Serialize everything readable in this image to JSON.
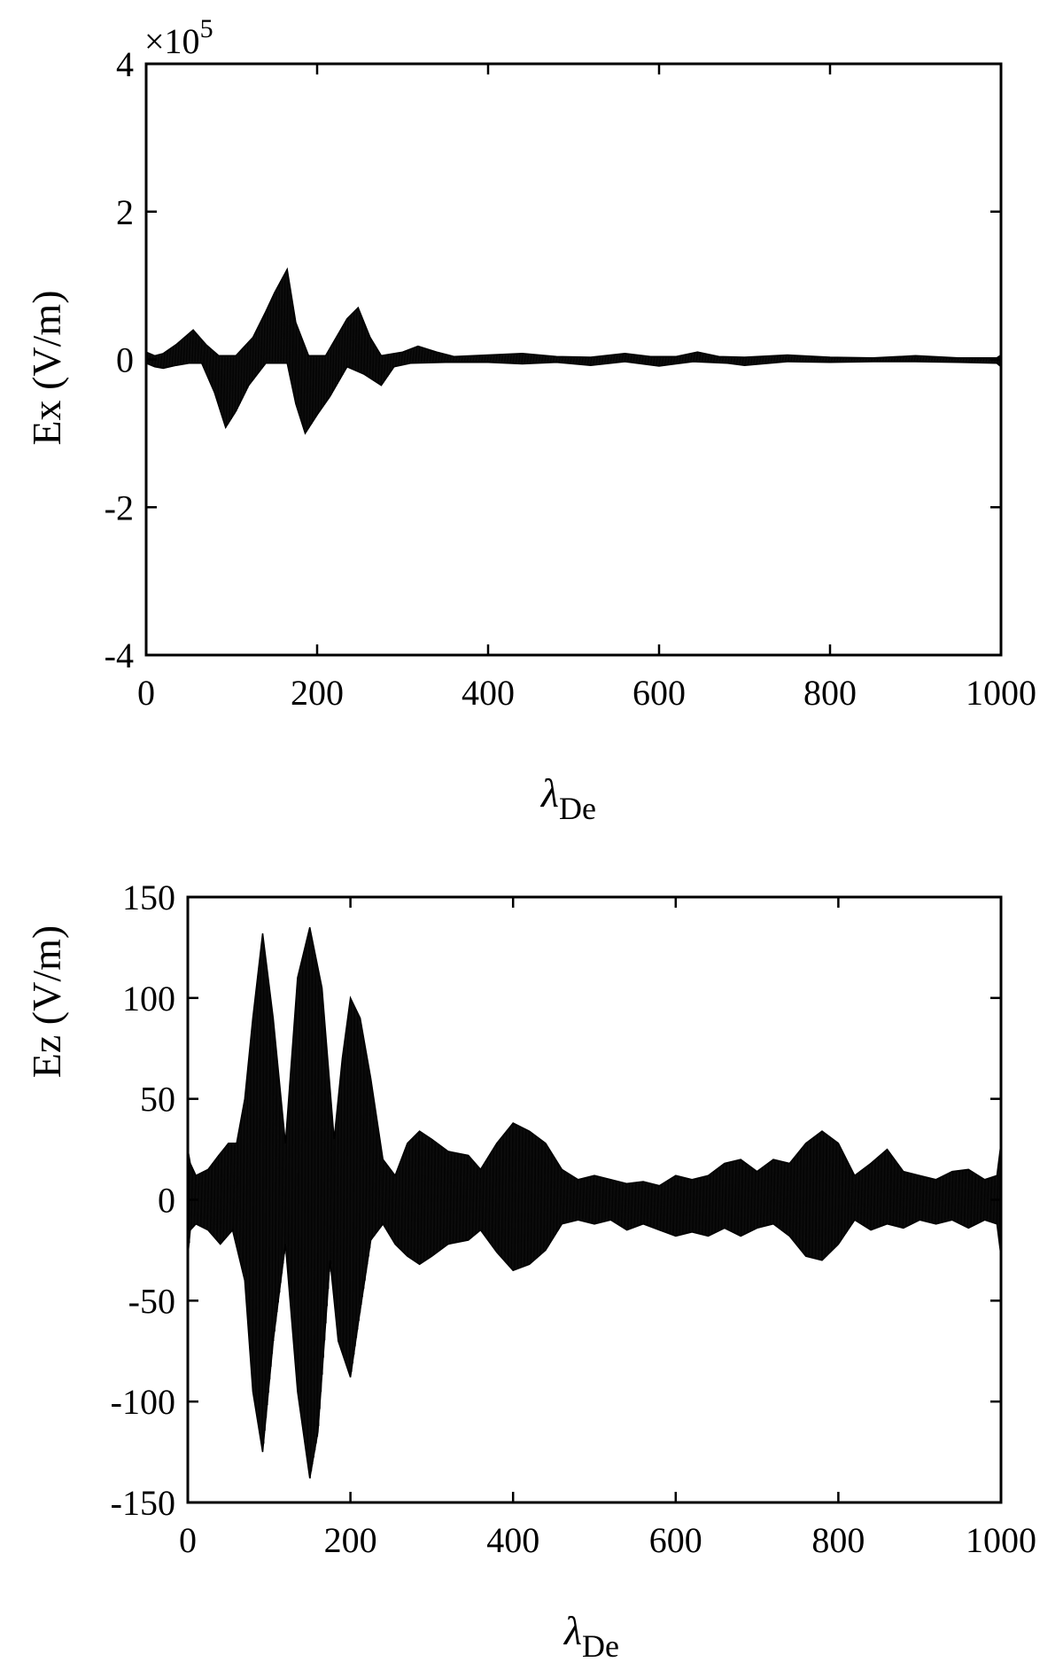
{
  "chart_data": [
    {
      "type": "area",
      "xlabel": "λ",
      "xlabel_sub": "De",
      "ylabel": "Ex (V/m)",
      "y_exponent_label": "×10",
      "y_exponent_power": "5",
      "xlim": [
        0,
        1000
      ],
      "ylim": [
        -4,
        4
      ],
      "xticks": [
        "0",
        "200",
        "400",
        "600",
        "800",
        "1000"
      ],
      "xtick_values": [
        0,
        200,
        400,
        600,
        800,
        1000
      ],
      "yticks": [
        "-4",
        "-2",
        "0",
        "2",
        "4"
      ],
      "ytick_values": [
        -4,
        -2,
        0,
        2,
        4
      ],
      "grid": false,
      "series_color": "#000000",
      "series": [
        {
          "upper": {
            "x": [
              0,
              10,
              20,
              35,
              55,
              70,
              85,
              105,
              125,
              140,
              150,
              165,
              175,
              190,
              210,
              235,
              248,
              262,
              275,
              300,
              318,
              340,
              360,
              400,
              440,
              480,
              520,
              560,
              590,
              620,
              645,
              670,
              700,
              750,
              800,
              850,
              900,
              950,
              995,
              1000
            ],
            "y": [
              0.1,
              0.05,
              0.08,
              0.2,
              0.4,
              0.2,
              0.05,
              0.05,
              0.3,
              0.65,
              0.9,
              1.22,
              0.5,
              0.05,
              0.05,
              0.55,
              0.7,
              0.3,
              0.05,
              0.1,
              0.18,
              0.1,
              0.04,
              0.06,
              0.08,
              0.04,
              0.03,
              0.08,
              0.04,
              0.04,
              0.1,
              0.04,
              0.03,
              0.06,
              0.03,
              0.02,
              0.05,
              0.02,
              0.02,
              0.06
            ]
          },
          "lower": {
            "x": [
              0,
              10,
              20,
              35,
              50,
              65,
              80,
              93,
              105,
              120,
              140,
              165,
              175,
              186,
              200,
              215,
              235,
              255,
              275,
              290,
              310,
              350,
              400,
              440,
              480,
              520,
              560,
              600,
              640,
              680,
              700,
              750,
              800,
              850,
              900,
              950,
              995,
              1000
            ],
            "y": [
              -0.05,
              -0.1,
              -0.12,
              -0.08,
              -0.05,
              -0.05,
              -0.45,
              -0.92,
              -0.7,
              -0.35,
              -0.05,
              -0.05,
              -0.6,
              -1.0,
              -0.75,
              -0.5,
              -0.1,
              -0.2,
              -0.35,
              -0.1,
              -0.05,
              -0.04,
              -0.04,
              -0.06,
              -0.04,
              -0.08,
              -0.03,
              -0.09,
              -0.03,
              -0.05,
              -0.08,
              -0.03,
              -0.04,
              -0.03,
              -0.03,
              -0.04,
              -0.05,
              -0.1
            ]
          }
        }
      ]
    },
    {
      "type": "area",
      "xlabel": "λ",
      "xlabel_sub": "De",
      "ylabel": "Ez (V/m)",
      "xlim": [
        0,
        1000
      ],
      "ylim": [
        -150,
        150
      ],
      "xticks": [
        "0",
        "200",
        "400",
        "600",
        "800",
        "1000"
      ],
      "xtick_values": [
        0,
        200,
        400,
        600,
        800,
        1000
      ],
      "yticks": [
        "-150",
        "-100",
        "-50",
        "0",
        "50",
        "100",
        "150"
      ],
      "ytick_values": [
        -150,
        -100,
        -50,
        0,
        50,
        100,
        150
      ],
      "grid": false,
      "series_color": "#000000",
      "series": [
        {
          "upper": {
            "x": [
              0,
              3,
              10,
              25,
              38,
              50,
              60,
              70,
              80,
              92,
              105,
              120,
              135,
              150,
              165,
              180,
              190,
              200,
              212,
              225,
              240,
              255,
              270,
              285,
              300,
              320,
              345,
              360,
              380,
              400,
              420,
              440,
              460,
              480,
              500,
              520,
              540,
              560,
              580,
              600,
              620,
              640,
              660,
              680,
              700,
              720,
              740,
              760,
              780,
              800,
              820,
              840,
              860,
              880,
              900,
              920,
              940,
              960,
              980,
              995,
              1000
            ],
            "y": [
              25,
              18,
              12,
              15,
              22,
              28,
              28,
              50,
              90,
              132,
              90,
              28,
              110,
              135,
              105,
              30,
              70,
              100,
              90,
              60,
              20,
              12,
              28,
              34,
              30,
              24,
              22,
              15,
              28,
              38,
              34,
              28,
              15,
              10,
              12,
              10,
              8,
              9,
              7,
              12,
              10,
              12,
              18,
              20,
              14,
              20,
              18,
              28,
              34,
              28,
              12,
              18,
              25,
              14,
              12,
              10,
              14,
              15,
              10,
              12,
              28
            ]
          },
          "lower": {
            "x": [
              0,
              3,
              10,
              25,
              40,
              55,
              70,
              80,
              92,
              105,
              120,
              135,
              150,
              160,
              175,
              185,
              200,
              210,
              225,
              240,
              255,
              270,
              285,
              300,
              320,
              345,
              360,
              380,
              400,
              420,
              440,
              460,
              480,
              500,
              520,
              540,
              560,
              580,
              600,
              620,
              640,
              660,
              680,
              700,
              720,
              740,
              760,
              780,
              800,
              820,
              840,
              860,
              880,
              900,
              920,
              940,
              960,
              980,
              995,
              1000
            ],
            "y": [
              -28,
              -15,
              -12,
              -15,
              -22,
              -15,
              -40,
              -95,
              -125,
              -70,
              -22,
              -95,
              -138,
              -115,
              -30,
              -70,
              -88,
              -60,
              -20,
              -12,
              -22,
              -28,
              -32,
              -28,
              -22,
              -20,
              -15,
              -26,
              -35,
              -32,
              -25,
              -12,
              -10,
              -12,
              -10,
              -15,
              -12,
              -15,
              -18,
              -16,
              -18,
              -14,
              -18,
              -14,
              -12,
              -18,
              -28,
              -30,
              -22,
              -10,
              -15,
              -12,
              -14,
              -10,
              -12,
              -10,
              -14,
              -10,
              -12,
              -28
            ]
          }
        }
      ]
    }
  ]
}
